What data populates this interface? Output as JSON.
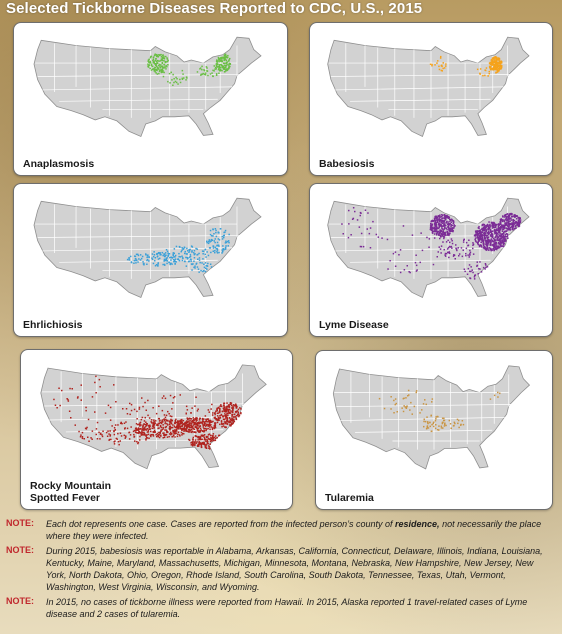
{
  "title": "Selected Tickborne Diseases Reported to CDC, U.S., 2015",
  "panels": [
    {
      "name": "Anaplasmosis",
      "lines": [
        "Anaplasmosis"
      ],
      "color": "#6abf45",
      "clusters": [
        {
          "c": [
            0.53,
            0.27
          ],
          "r": [
            0.045,
            0.1
          ],
          "n": 140
        },
        {
          "c": [
            0.8,
            0.26
          ],
          "r": [
            0.03,
            0.09
          ],
          "n": 120
        },
        {
          "c": [
            0.74,
            0.34
          ],
          "r": [
            0.05,
            0.06
          ],
          "n": 35
        },
        {
          "c": [
            0.6,
            0.4
          ],
          "r": [
            0.05,
            0.08
          ],
          "n": 25
        }
      ]
    },
    {
      "name": "Babesiosis",
      "lines": [
        "Babesiosis"
      ],
      "color": "#f5a21b",
      "clusters": [
        {
          "c": [
            0.8,
            0.28
          ],
          "r": [
            0.03,
            0.08
          ],
          "n": 170
        },
        {
          "c": [
            0.53,
            0.27
          ],
          "r": [
            0.04,
            0.08
          ],
          "n": 20
        },
        {
          "c": [
            0.74,
            0.35
          ],
          "r": [
            0.04,
            0.05
          ],
          "n": 12
        }
      ]
    },
    {
      "name": "Ehrlichiosis",
      "lines": [
        "Ehrlichiosis"
      ],
      "color": "#3aa0d8",
      "clusters": [
        {
          "c": [
            0.52,
            0.6
          ],
          "r": [
            0.12,
            0.07
          ],
          "n": 110
        },
        {
          "c": [
            0.65,
            0.55
          ],
          "r": [
            0.1,
            0.08
          ],
          "n": 90
        },
        {
          "c": [
            0.78,
            0.42
          ],
          "r": [
            0.05,
            0.13
          ],
          "n": 80
        },
        {
          "c": [
            0.7,
            0.68
          ],
          "r": [
            0.06,
            0.05
          ],
          "n": 30
        }
      ]
    },
    {
      "name": "Lyme Disease",
      "lines": [
        "Lyme Disease"
      ],
      "color": "#7b2c96",
      "clusters": [
        {
          "c": [
            0.78,
            0.38
          ],
          "r": [
            0.08,
            0.14
          ],
          "n": 520
        },
        {
          "c": [
            0.87,
            0.24
          ],
          "r": [
            0.05,
            0.08
          ],
          "n": 200
        },
        {
          "c": [
            0.55,
            0.28
          ],
          "r": [
            0.06,
            0.11
          ],
          "n": 300
        },
        {
          "c": [
            0.62,
            0.5
          ],
          "r": [
            0.1,
            0.1
          ],
          "n": 60
        },
        {
          "c": [
            0.4,
            0.5
          ],
          "r": [
            0.2,
            0.25
          ],
          "n": 40
        },
        {
          "c": [
            0.15,
            0.3
          ],
          "r": [
            0.08,
            0.2
          ],
          "n": 25
        },
        {
          "c": [
            0.75,
            0.72
          ],
          "r": [
            0.1,
            0.1
          ],
          "n": 30
        }
      ]
    },
    {
      "name": "Rocky Mountain Spotted Fever",
      "lines": [
        "Rocky Mountain",
        "Spotted Fever"
      ],
      "color": "#b0231f",
      "clusters": [
        {
          "c": [
            0.52,
            0.6
          ],
          "r": [
            0.12,
            0.09
          ],
          "n": 240
        },
        {
          "c": [
            0.66,
            0.57
          ],
          "r": [
            0.09,
            0.07
          ],
          "n": 260
        },
        {
          "c": [
            0.8,
            0.48
          ],
          "r": [
            0.06,
            0.12
          ],
          "n": 220
        },
        {
          "c": [
            0.72,
            0.72
          ],
          "r": [
            0.09,
            0.07
          ],
          "n": 140
        },
        {
          "c": [
            0.38,
            0.65
          ],
          "r": [
            0.1,
            0.12
          ],
          "n": 90
        },
        {
          "c": [
            0.55,
            0.45
          ],
          "r": [
            0.2,
            0.18
          ],
          "n": 90
        },
        {
          "c": [
            0.22,
            0.65
          ],
          "r": [
            0.06,
            0.07
          ],
          "n": 25
        },
        {
          "c": [
            0.2,
            0.35
          ],
          "r": [
            0.15,
            0.25
          ],
          "n": 35
        }
      ]
    },
    {
      "name": "Tularemia",
      "lines": [
        "Tularemia"
      ],
      "color": "#c99544",
      "clusters": [
        {
          "c": [
            0.5,
            0.55
          ],
          "r": [
            0.06,
            0.08
          ],
          "n": 45
        },
        {
          "c": [
            0.4,
            0.35
          ],
          "r": [
            0.1,
            0.12
          ],
          "n": 25
        },
        {
          "c": [
            0.6,
            0.55
          ],
          "r": [
            0.06,
            0.05
          ],
          "n": 18
        },
        {
          "c": [
            0.3,
            0.4
          ],
          "r": [
            0.12,
            0.1
          ],
          "n": 12
        },
        {
          "c": [
            0.8,
            0.3
          ],
          "r": [
            0.04,
            0.04
          ],
          "n": 5
        }
      ]
    }
  ],
  "notes": [
    {
      "tag": "NOTE:",
      "before": "Each dot represents one case. Cases are reported from the infected person’s county of ",
      "bold": "residence,",
      "after": " not necessarily the place where they were infected."
    },
    {
      "tag": "NOTE:",
      "before": "During 2015, babesiosis was reportable in Alabama, Arkansas, California, Connecticut, Delaware, Illinois, Indiana, Louisiana, Kentucky, Maine, Maryland, Massachusetts, Michigan, Minnesota, Montana, Nebraska, New Hampshire, New Jersey, New York, North Dakota, Ohio, Oregon, Rhode Island, South Carolina, South Dakota, Tennessee, Texas, Utah, Vermont, Washington, West Virginia, Wisconsin, and Wyoming.",
      "bold": "",
      "after": ""
    },
    {
      "tag": "NOTE:",
      "before": "In 2015, no cases of tickborne illness were reported from Hawaii. In 2015, Alaska reported 1 travel-related cases of Lyme disease and 2 cases of tularemia.",
      "bold": "",
      "after": ""
    }
  ]
}
